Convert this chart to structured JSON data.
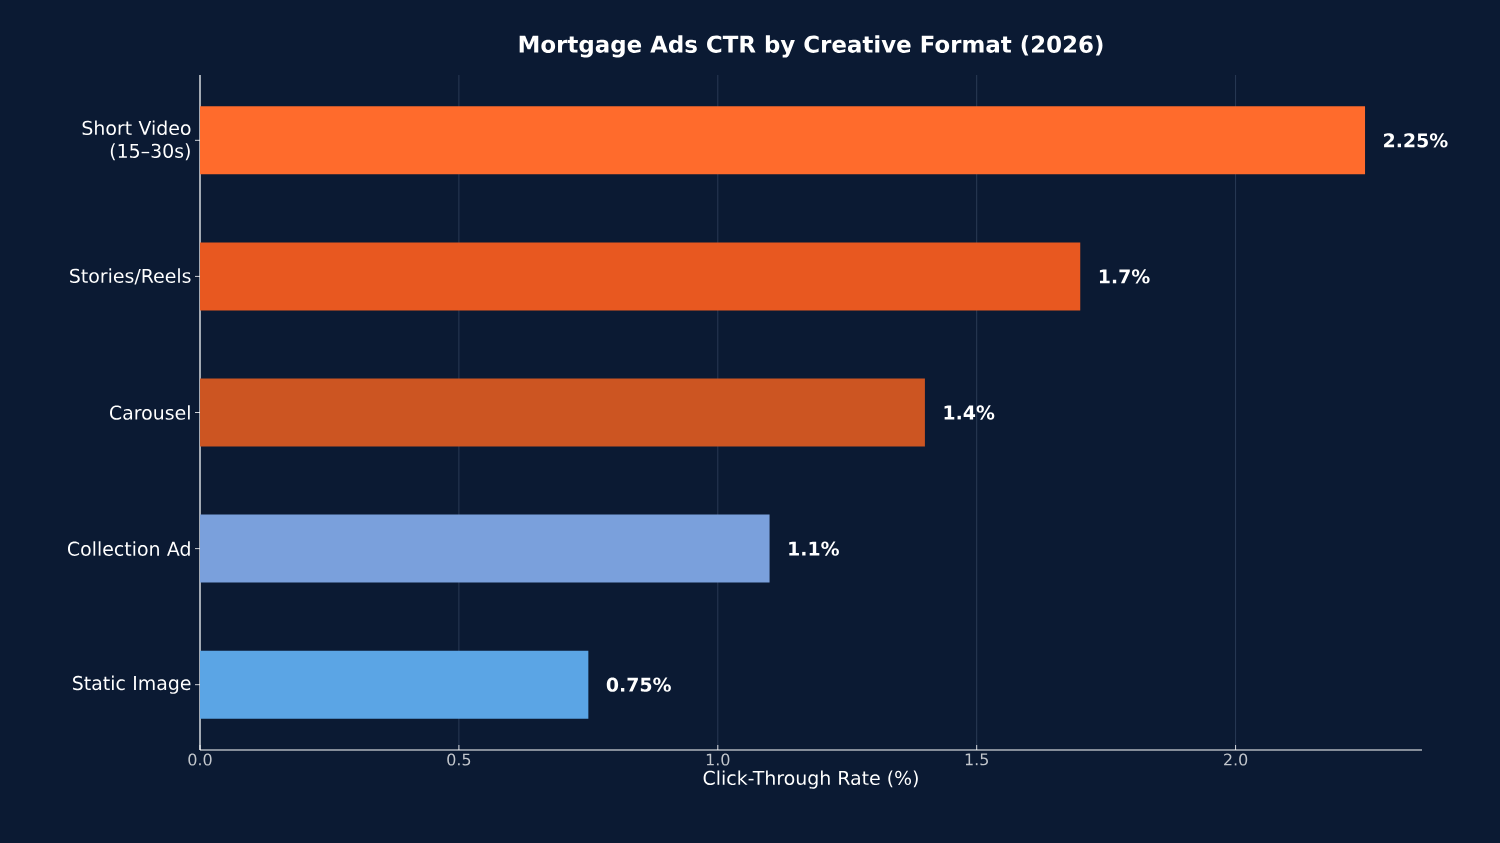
{
  "chart_data": {
    "type": "bar",
    "orientation": "horizontal",
    "title": "Mortgage Ads CTR by Creative Format (2026)",
    "xlabel": "Click-Through Rate (%)",
    "categories": [
      "Short Video (15–30s)",
      "Stories/Reels",
      "Carousel",
      "Collection Ad",
      "Static Image"
    ],
    "values": [
      2.25,
      1.7,
      1.4,
      1.1,
      0.75
    ],
    "colors": [
      "#ff6b2c",
      "#e85820",
      "#cc5522",
      "#7aa0dc",
      "#5ba5e5"
    ],
    "value_labels": [
      "2.25%",
      "1.7%",
      "1.4%",
      "1.1%",
      "0.75%"
    ],
    "xlim": [
      0,
      2.36
    ],
    "xticks": [
      {
        "value": 0,
        "label": "0.0"
      },
      {
        "value": 0.5,
        "label": "0.5"
      },
      {
        "value": 1,
        "label": "1.0"
      },
      {
        "value": 1.5,
        "label": "1.5"
      },
      {
        "value": 2,
        "label": "2.0"
      }
    ],
    "grid": "x"
  }
}
